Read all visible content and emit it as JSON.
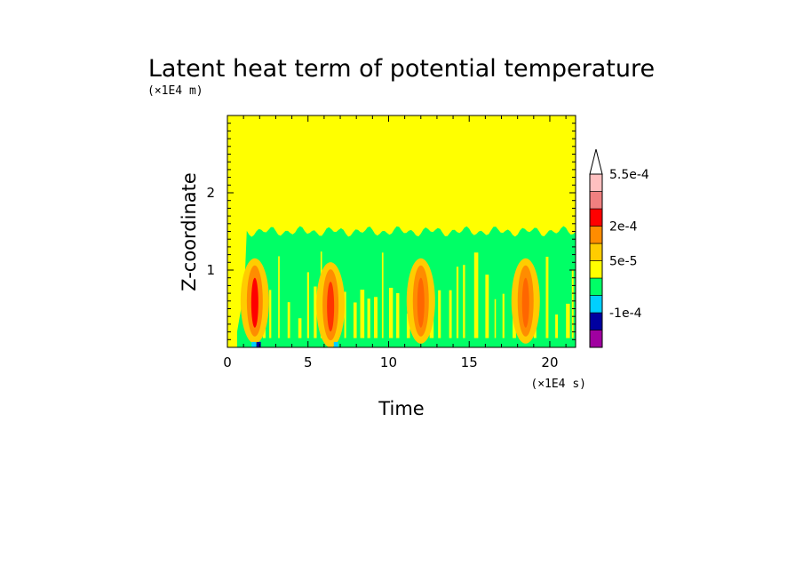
{
  "chart_data": {
    "type": "heatmap",
    "title": "Latent heat term of potential temperature",
    "xlabel": "Time",
    "ylabel": "Z-coordinate",
    "x_unit": "(×1E4 s)",
    "y_unit": "(×1E4 m)",
    "xlim": [
      0,
      21.6
    ],
    "ylim": [
      0,
      3
    ],
    "x_ticks": [
      0,
      5,
      10,
      15,
      20
    ],
    "y_ticks": [
      1,
      2
    ],
    "background_level_color": "#ffff00",
    "convective_layer_top": 1.55,
    "convective_bursts": [
      {
        "time": 1.7,
        "z_center": 0.6,
        "peak_color": "#ff0000"
      },
      {
        "time": 6.4,
        "z_center": 0.55,
        "peak_color": "#ff3300"
      },
      {
        "time": 12.0,
        "z_center": 0.6,
        "peak_color": "#ff6600"
      },
      {
        "time": 18.5,
        "z_center": 0.6,
        "peak_color": "#ff6600"
      }
    ],
    "colorbar": {
      "levels": [
        {
          "color": "#a000a0"
        },
        {
          "color": "#0000a0"
        },
        {
          "color": "#00cfff"
        },
        {
          "color": "#00ff66"
        },
        {
          "color": "#ffff00"
        },
        {
          "color": "#ffcc00"
        },
        {
          "color": "#ff8c00"
        },
        {
          "color": "#ff0000"
        },
        {
          "color": "#f08080"
        },
        {
          "color": "#ffc0c0"
        }
      ],
      "over_color": "#ffffff",
      "labels": [
        "5.5e-4",
        "2e-4",
        "5e-5",
        "-1e-4"
      ]
    }
  }
}
